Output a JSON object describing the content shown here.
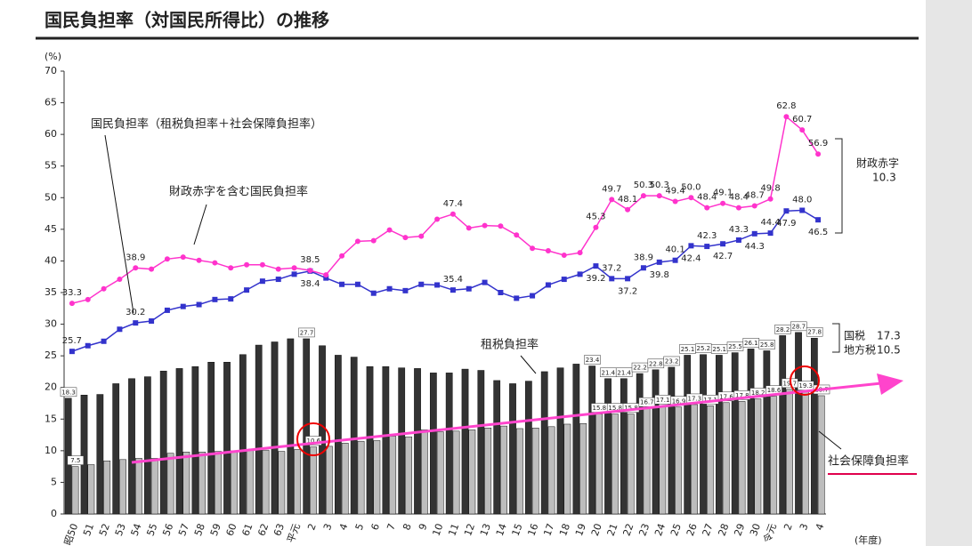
{
  "chart_data": {
    "type": "bar",
    "title": "国民負担率（対国民所得比）の推移",
    "y_unit": "(%)",
    "x_unit": "(年度)",
    "categories": [
      "昭50",
      "51",
      "52",
      "53",
      "54",
      "55",
      "56",
      "57",
      "58",
      "59",
      "60",
      "61",
      "62",
      "63",
      "平元",
      "2",
      "3",
      "4",
      "5",
      "6",
      "7",
      "8",
      "9",
      "10",
      "11",
      "12",
      "13",
      "14",
      "15",
      "16",
      "17",
      "18",
      "19",
      "20",
      "21",
      "22",
      "23",
      "24",
      "25",
      "26",
      "27",
      "28",
      "29",
      "30",
      "令元",
      "2",
      "3",
      "4"
    ],
    "ylim": [
      0,
      70
    ],
    "yticks": [
      0,
      5,
      10,
      15,
      20,
      25,
      30,
      35,
      40,
      45,
      50,
      55,
      60,
      65,
      70
    ],
    "annotations": {
      "total": "国民負担率（租税負担率＋社会保障負担率）",
      "with_deficit": "財政赤字を含む国民負担率",
      "tax": "租税負担率",
      "social": "社会保障負担率",
      "deficit": "財政赤字",
      "deficit_value": "10.3",
      "national_tax": "国税",
      "national_tax_value": "17.3",
      "local_tax": "地方税",
      "local_tax_value": "10.5"
    },
    "series": [
      {
        "name": "租税負担率",
        "type": "bar",
        "color": "#333333",
        "values": [
          18.3,
          18.8,
          18.9,
          20.6,
          21.4,
          21.7,
          22.6,
          23.0,
          23.3,
          24.0,
          24.0,
          25.2,
          26.7,
          27.2,
          27.7,
          27.7,
          26.6,
          25.1,
          24.8,
          23.3,
          23.3,
          23.1,
          23.0,
          22.3,
          22.3,
          22.9,
          22.7,
          21.1,
          20.6,
          21.0,
          22.5,
          23.1,
          23.7,
          23.4,
          21.4,
          21.4,
          22.2,
          22.8,
          23.2,
          25.1,
          25.2,
          25.1,
          25.5,
          26.1,
          25.8,
          28.2,
          28.7,
          27.8
        ],
        "value_labels": [
          "18.3",
          null,
          null,
          null,
          null,
          null,
          null,
          null,
          null,
          null,
          null,
          null,
          null,
          null,
          null,
          "27.7",
          null,
          null,
          null,
          null,
          null,
          null,
          null,
          null,
          null,
          null,
          null,
          null,
          null,
          null,
          null,
          null,
          null,
          "23.4",
          "21.4",
          "21.4",
          "22.2",
          "22.8",
          "23.2",
          "25.1",
          "25.2",
          "25.1",
          "25.5",
          "26.1",
          "25.8",
          "28.2",
          "28.7",
          "27.8"
        ]
      },
      {
        "name": "社会保障負担率",
        "type": "bar",
        "color": "#bdbdbd",
        "values": [
          7.5,
          7.8,
          8.4,
          8.6,
          8.8,
          8.8,
          9.6,
          9.8,
          9.8,
          9.9,
          10.0,
          10.2,
          10.1,
          9.9,
          10.2,
          10.6,
          10.7,
          11.2,
          11.5,
          11.6,
          12.3,
          12.2,
          13.3,
          13.0,
          13.1,
          13.3,
          13.6,
          13.9,
          13.5,
          13.6,
          13.8,
          14.2,
          14.3,
          15.8,
          15.8,
          15.8,
          16.7,
          17.1,
          16.9,
          17.3,
          17.1,
          17.6,
          17.8,
          18.2,
          18.6,
          19.7,
          19.3,
          18.7
        ],
        "value_labels": [
          "7.5",
          null,
          null,
          null,
          null,
          null,
          null,
          null,
          null,
          null,
          null,
          null,
          null,
          null,
          null,
          "10.6",
          null,
          null,
          null,
          null,
          null,
          null,
          null,
          null,
          null,
          null,
          null,
          null,
          null,
          null,
          null,
          null,
          null,
          "15.8",
          "15.8",
          "15.8",
          "16.7",
          "17.1",
          "16.9",
          "17.3",
          "17.1",
          "17.6",
          "17.8",
          "18.2",
          "18.6",
          "19.7",
          "19.3",
          "18.7"
        ]
      },
      {
        "name": "国民負担率",
        "type": "line",
        "color": "#3333cc",
        "marker": "square",
        "values": [
          25.7,
          26.6,
          27.3,
          29.2,
          30.2,
          30.5,
          32.2,
          32.8,
          33.1,
          33.9,
          34.0,
          35.4,
          36.8,
          37.1,
          37.9,
          38.4,
          37.3,
          36.3,
          36.3,
          34.9,
          35.6,
          35.3,
          36.3,
          36.2,
          35.4,
          35.6,
          36.6,
          35.0,
          34.1,
          34.5,
          36.2,
          37.1,
          37.9,
          39.2,
          37.2,
          37.2,
          38.9,
          39.8,
          40.1,
          42.4,
          42.3,
          42.7,
          43.3,
          44.3,
          44.4,
          47.9,
          48.0,
          46.5
        ],
        "value_labels": [
          "25.7",
          null,
          null,
          null,
          "30.2",
          null,
          null,
          null,
          null,
          null,
          null,
          null,
          null,
          null,
          null,
          "38.4",
          null,
          null,
          null,
          null,
          null,
          null,
          null,
          null,
          "35.4",
          null,
          null,
          null,
          null,
          null,
          null,
          null,
          null,
          "39.2",
          "37.2",
          "37.2",
          "38.9",
          "39.8",
          "40.1",
          "42.4",
          "42.3",
          "42.7",
          "43.3",
          "44.3",
          "44.4",
          "47.9",
          "48.0",
          "46.5"
        ]
      },
      {
        "name": "財政赤字を含む国民負担率",
        "type": "line",
        "color": "#ff33cc",
        "marker": "circle",
        "values": [
          33.3,
          33.9,
          35.6,
          37.1,
          38.9,
          38.7,
          40.3,
          40.6,
          40.1,
          39.7,
          38.9,
          39.4,
          39.4,
          38.7,
          38.9,
          38.5,
          37.8,
          40.8,
          43.1,
          43.2,
          44.9,
          43.7,
          43.9,
          46.6,
          47.4,
          45.2,
          45.6,
          45.5,
          44.1,
          42.0,
          41.6,
          40.9,
          41.3,
          45.3,
          49.7,
          48.1,
          50.3,
          50.3,
          49.4,
          50.0,
          48.4,
          49.1,
          48.4,
          48.7,
          49.8,
          62.8,
          60.7,
          56.9
        ],
        "value_labels": [
          "33.3",
          null,
          null,
          null,
          "38.9",
          null,
          null,
          null,
          null,
          null,
          null,
          null,
          null,
          null,
          null,
          "38.5",
          null,
          null,
          null,
          null,
          null,
          null,
          null,
          null,
          "47.4",
          null,
          null,
          null,
          null,
          null,
          null,
          null,
          null,
          "45.3",
          "49.7",
          "48.1",
          "50.3",
          "50.3",
          "49.4",
          "50.0",
          "48.4",
          "49.1",
          "48.4",
          "48.7",
          "49.8",
          "62.8",
          "60.7",
          "56.9"
        ]
      }
    ]
  }
}
